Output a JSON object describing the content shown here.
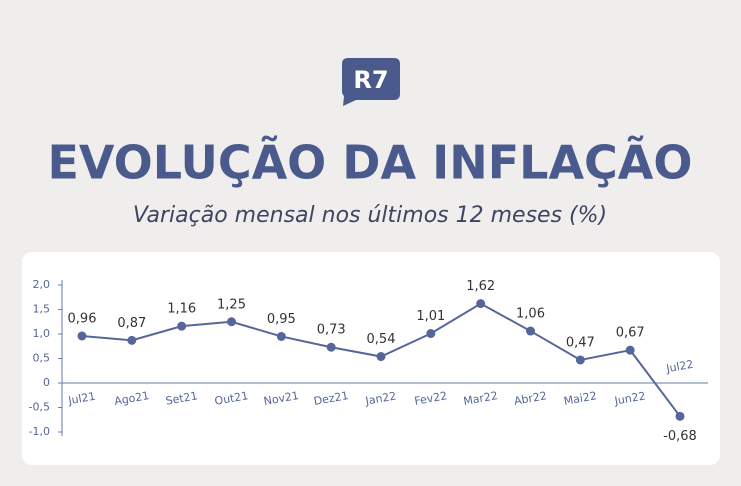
{
  "logo": "R7",
  "chart_data": {
    "type": "line",
    "title": "EVOLUÇÃO DA INFLAÇÃO",
    "subtitle": "Variação mensal nos últimos 12 meses (%)",
    "categories": [
      "Jul21",
      "Ago21",
      "Set21",
      "Out21",
      "Nov21",
      "Dez21",
      "Jan22",
      "Fev22",
      "Mar22",
      "Abr22",
      "Mai22",
      "Jun22",
      "Jul22"
    ],
    "values": [
      0.96,
      0.87,
      1.16,
      1.25,
      0.95,
      0.73,
      0.54,
      1.01,
      1.62,
      1.06,
      0.47,
      0.67,
      -0.68
    ],
    "value_labels": [
      "0,96",
      "0,87",
      "1,16",
      "1,25",
      "0,95",
      "0,73",
      "0,54",
      "1,01",
      "1,62",
      "1,06",
      "0,47",
      "0,67",
      "-0,68"
    ],
    "color": "#56669a",
    "ylim": [
      -1,
      2
    ],
    "yticks": [
      {
        "value": 2,
        "label": "2,0"
      },
      {
        "value": 1.5,
        "label": "1,5"
      },
      {
        "value": 1,
        "label": "1,0"
      },
      {
        "value": 0.5,
        "label": "0,5"
      },
      0,
      {
        "value": -0.5,
        "label": "-0,5"
      },
      {
        "value": -1,
        "label": "-1,0"
      }
    ]
  }
}
